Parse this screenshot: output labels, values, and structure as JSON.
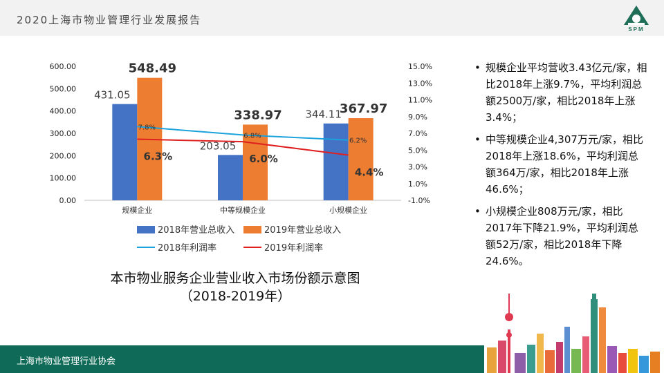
{
  "header": {
    "title": "2020上海市物业管理行业发展报告",
    "logo_text": "SPM"
  },
  "footer": {
    "text": "上海市物业管理行业协会"
  },
  "caption": {
    "line1": "本市物业服务企业营业收入市场份额示意图",
    "line2": "（2018-2019年）"
  },
  "bullets": [
    "规模企业平均营收3.43亿元/家，相比2018年上涨9.7%，平均利润总额2500万/家，相比2018年上涨3.4%；",
    "中等规模企业4,307万元/家，相比2018年上涨18.6%，平均利润总额364万/家，相比2018年上涨46.6%；",
    "小规模企业808万元/家，相比2017年下降21.9%，平均利润总额52万/家，相比2018年下降24.6%。"
  ],
  "chart_data": {
    "type": "bar",
    "categories": [
      "规模企业",
      "中等规模企业",
      "小规模企业"
    ],
    "bar_series": [
      {
        "name": "2018年营业总收入",
        "values": [
          431.05,
          203.05,
          344.11
        ],
        "labels": [
          "431.05",
          "203.05",
          "344.11"
        ],
        "color": "#4472c4"
      },
      {
        "name": "2019年营业总收入",
        "values": [
          548.49,
          338.97,
          367.97
        ],
        "labels": [
          "548.49",
          "338.97",
          "367.97"
        ],
        "color": "#ed7d31"
      }
    ],
    "line_series": [
      {
        "name": "2018年利润率",
        "values": [
          7.8,
          6.8,
          6.2
        ],
        "labels": [
          "7.8%",
          "6.8%",
          "6.2%"
        ],
        "color": "#1aa3dc"
      },
      {
        "name": "2019年利润率",
        "values": [
          6.3,
          6.0,
          4.4
        ],
        "labels": [
          "6.3%",
          "6.0%",
          "4.4%"
        ],
        "color": "#e02020"
      }
    ],
    "y_left": {
      "ylim": [
        0,
        600
      ],
      "ticks": [
        "0.00",
        "100.00",
        "200.00",
        "300.00",
        "400.00",
        "500.00",
        "600.00"
      ]
    },
    "y_right": {
      "ylim": [
        -1,
        15
      ],
      "ticks": [
        "-1.0%",
        "1.0%",
        "3.0%",
        "5.0%",
        "7.0%",
        "9.0%",
        "11.0%",
        "13.0%",
        "15.0%"
      ]
    },
    "legend_position": "bottom"
  }
}
